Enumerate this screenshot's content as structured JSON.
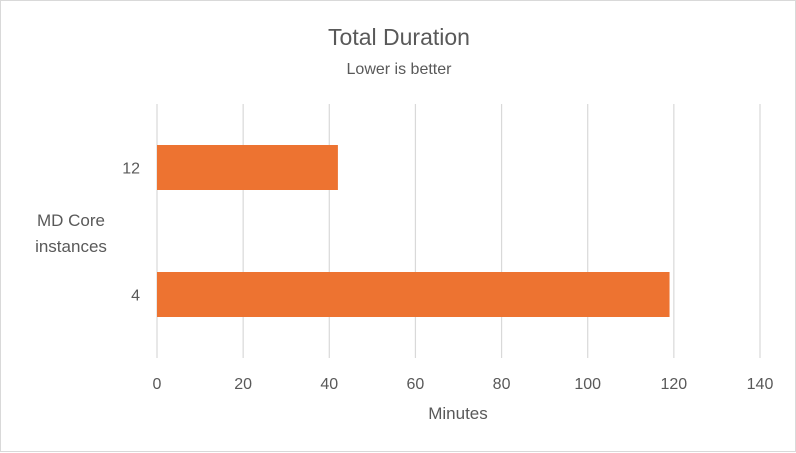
{
  "chart_data": {
    "type": "bar",
    "orientation": "horizontal",
    "title": "Total Duration",
    "subtitle": "Lower is better",
    "xlabel": "Minutes",
    "ylabel": "MD Core instances",
    "categories": [
      "12",
      "4"
    ],
    "values": [
      42,
      119
    ],
    "xlim": [
      0,
      140
    ],
    "xticks": [
      0,
      20,
      40,
      60,
      80,
      100,
      120,
      140
    ],
    "grid": true,
    "legend": "none",
    "bar_color": "#ed7331",
    "gridline_color": "#d9d9d9",
    "text_color": "#595959"
  }
}
